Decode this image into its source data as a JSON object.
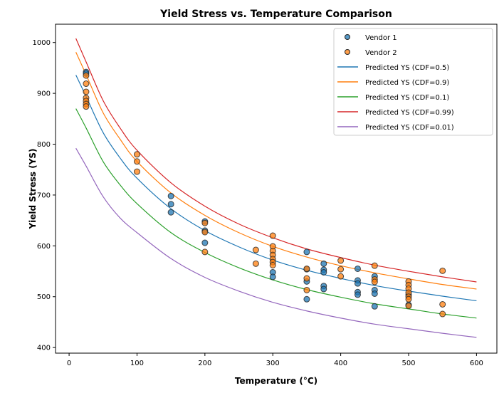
{
  "chart_data": {
    "type": "scatter",
    "title": "Yield Stress vs. Temperature Comparison",
    "xlabel": "Temperature (°C)",
    "ylabel": "Yield Stress (YS)",
    "xlim": [
      -20,
      630
    ],
    "ylim": [
      389,
      1036
    ],
    "xticks": [
      0,
      100,
      200,
      300,
      400,
      500,
      600
    ],
    "yticks": [
      400,
      500,
      600,
      700,
      800,
      900,
      1000
    ],
    "grid": false,
    "legend_position": "top-right",
    "scatter_series": [
      {
        "name": "Vendor 1",
        "color": "#1f77b4",
        "points": [
          [
            25,
            942
          ],
          [
            25,
            939
          ],
          [
            150,
            698
          ],
          [
            150,
            682
          ],
          [
            150,
            666
          ],
          [
            200,
            648
          ],
          [
            200,
            630
          ],
          [
            200,
            606
          ],
          [
            300,
            548
          ],
          [
            300,
            539
          ],
          [
            350,
            588
          ],
          [
            350,
            554
          ],
          [
            350,
            530
          ],
          [
            350,
            495
          ],
          [
            375,
            565
          ],
          [
            375,
            553
          ],
          [
            375,
            548
          ],
          [
            375,
            521
          ],
          [
            375,
            515
          ],
          [
            425,
            555
          ],
          [
            425,
            532
          ],
          [
            425,
            526
          ],
          [
            425,
            509
          ],
          [
            425,
            504
          ],
          [
            450,
            540
          ],
          [
            450,
            513
          ],
          [
            450,
            506
          ],
          [
            450,
            481
          ],
          [
            500,
            504
          ],
          [
            500,
            484
          ]
        ]
      },
      {
        "name": "Vendor 2",
        "color": "#ff7f0e",
        "points": [
          [
            25,
            935
          ],
          [
            25,
            919
          ],
          [
            25,
            903
          ],
          [
            25,
            891
          ],
          [
            25,
            885
          ],
          [
            25,
            879
          ],
          [
            25,
            874
          ],
          [
            100,
            780
          ],
          [
            100,
            766
          ],
          [
            100,
            746
          ],
          [
            200,
            645
          ],
          [
            200,
            627
          ],
          [
            200,
            588
          ],
          [
            275,
            592
          ],
          [
            275,
            565
          ],
          [
            300,
            620
          ],
          [
            300,
            599
          ],
          [
            300,
            590
          ],
          [
            300,
            582
          ],
          [
            300,
            574
          ],
          [
            300,
            568
          ],
          [
            300,
            562
          ],
          [
            350,
            555
          ],
          [
            350,
            536
          ],
          [
            350,
            513
          ],
          [
            400,
            571
          ],
          [
            400,
            554
          ],
          [
            400,
            540
          ],
          [
            450,
            561
          ],
          [
            450,
            534
          ],
          [
            450,
            529
          ],
          [
            500,
            530
          ],
          [
            500,
            523
          ],
          [
            500,
            516
          ],
          [
            500,
            508
          ],
          [
            500,
            500
          ],
          [
            500,
            495
          ],
          [
            500,
            482
          ],
          [
            550,
            551
          ],
          [
            550,
            485
          ],
          [
            550,
            466
          ]
        ]
      }
    ],
    "line_series": [
      {
        "name": "Predicted YS (CDF=0.5)",
        "color": "#1f77b4",
        "x": [
          10,
          25,
          50,
          75,
          100,
          150,
          200,
          250,
          300,
          350,
          400,
          450,
          500,
          550,
          600
        ],
        "y": [
          936,
          894,
          823,
          773,
          733,
          673,
          630,
          598,
          572,
          552,
          536,
          522,
          511,
          501,
          492
        ]
      },
      {
        "name": "Predicted YS (CDF=0.9)",
        "color": "#ff7f0e",
        "x": [
          10,
          25,
          50,
          75,
          100,
          150,
          200,
          250,
          300,
          350,
          400,
          450,
          500,
          550,
          600
        ],
        "y": [
          981,
          937,
          862,
          810,
          766,
          704,
          660,
          626,
          599,
          578,
          561,
          547,
          535,
          524,
          515
        ]
      },
      {
        "name": "Predicted YS (CDF=0.1)",
        "color": "#2ca02c",
        "x": [
          10,
          25,
          50,
          75,
          100,
          150,
          200,
          250,
          300,
          350,
          400,
          450,
          500,
          550,
          600
        ],
        "y": [
          870,
          832,
          766,
          720,
          683,
          626,
          587,
          557,
          533,
          514,
          499,
          486,
          476,
          466,
          458
        ]
      },
      {
        "name": "Predicted YS (CDF=0.99)",
        "color": "#d62728",
        "x": [
          10,
          25,
          50,
          75,
          100,
          150,
          200,
          250,
          300,
          350,
          400,
          450,
          500,
          550,
          600
        ],
        "y": [
          1008,
          962,
          886,
          832,
          788,
          724,
          678,
          643,
          616,
          594,
          577,
          562,
          550,
          539,
          529
        ]
      },
      {
        "name": "Predicted YS (CDF=0.01)",
        "color": "#9467bd",
        "x": [
          10,
          25,
          50,
          75,
          100,
          150,
          200,
          250,
          300,
          350,
          400,
          450,
          500,
          550,
          600
        ],
        "y": [
          792,
          757,
          697,
          655,
          626,
          575,
          538,
          511,
          489,
          472,
          458,
          446,
          437,
          428,
          420
        ]
      }
    ]
  }
}
